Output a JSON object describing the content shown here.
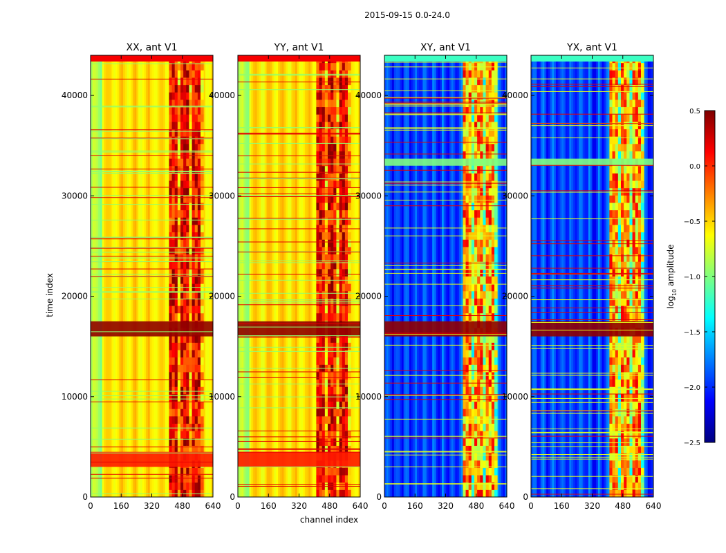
{
  "suptitle": "2015-09-15 0.0-24.0",
  "chart_data": {
    "type": "heatmap",
    "xlabel": "channel index",
    "ylabel": "time index",
    "xlim": [
      0,
      640
    ],
    "ylim": [
      0,
      44000
    ],
    "x_ticks": [
      0,
      160,
      320,
      480,
      640
    ],
    "y_ticks": [
      0,
      10000,
      20000,
      30000,
      40000
    ],
    "panels": [
      {
        "title": "XX, ant V1",
        "kind": "parallel"
      },
      {
        "title": "YY, ant V1",
        "kind": "parallel"
      },
      {
        "title": "XY, ant V1",
        "kind": "cross"
      },
      {
        "title": "YX, ant V1",
        "kind": "cross"
      }
    ],
    "colorbar": {
      "label_prefix": "log",
      "label_sub": "10",
      "label_suffix": " amplitude",
      "vmin": -2.5,
      "vmax": 0.5,
      "ticks": [
        0.5,
        0.0,
        -0.5,
        -1.0,
        -1.5,
        -2.0,
        -2.5
      ],
      "tick_labels": [
        "0.5",
        "0.0",
        "−0.5",
        "−1.0",
        "−1.5",
        "−2.0",
        "−2.5"
      ],
      "colormap": "jet"
    },
    "structure": {
      "strong_channel_band": [
        410,
        590
      ],
      "saturated_time_band": [
        16000,
        17500
      ],
      "bright_time_band_parallel": [
        3000,
        4500
      ],
      "bright_time_band_cross": [
        33000,
        33700
      ]
    }
  }
}
